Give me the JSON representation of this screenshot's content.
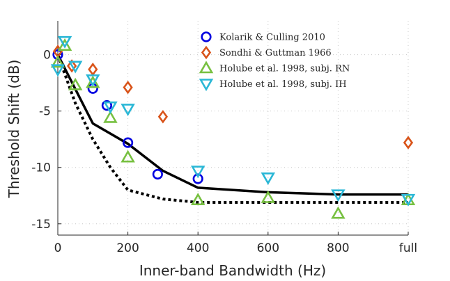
{
  "chart_data": {
    "type": "scatter",
    "xlabel": "Inner-band Bandwidth (Hz)",
    "ylabel": "Threshold Shift (dB)",
    "xlim": [
      0,
      1000
    ],
    "ylim": [
      -16,
      3
    ],
    "x_ticks": [
      {
        "value": 0,
        "label": "0"
      },
      {
        "value": 200,
        "label": "200"
      },
      {
        "value": 400,
        "label": "400"
      },
      {
        "value": 600,
        "label": "600"
      },
      {
        "value": 800,
        "label": "800"
      },
      {
        "value": 1000,
        "label": "full"
      }
    ],
    "y_ticks": [
      {
        "value": 0,
        "label": "0"
      },
      {
        "value": -5,
        "label": "-5"
      },
      {
        "value": -10,
        "label": "-10"
      },
      {
        "value": -15,
        "label": "-15"
      }
    ],
    "grid": true,
    "legend_position": "top-right",
    "series": [
      {
        "name": "Kolarik & Culling 2010",
        "marker": "circle",
        "color": "#0000e0",
        "x": [
          0,
          100,
          140,
          200,
          285,
          400
        ],
        "y": [
          0,
          -3,
          -4.5,
          -7.8,
          -10.6,
          -11.0
        ]
      },
      {
        "name": "Sondhi & Guttman 1966",
        "marker": "diamond",
        "color": "#d95319",
        "x": [
          0,
          40,
          100,
          200,
          300,
          1000
        ],
        "y": [
          0.3,
          -1.0,
          -1.3,
          -2.9,
          -5.5,
          -7.8
        ]
      },
      {
        "name": "Holube et al. 1998, subj. RN",
        "marker": "triangle-up",
        "color": "#77c040",
        "x": [
          0,
          20,
          50,
          100,
          150,
          200,
          400,
          600,
          800,
          1000
        ],
        "y": [
          -0.7,
          0.8,
          -2.7,
          -2.5,
          -5.6,
          -9.1,
          -12.9,
          -12.7,
          -14.1,
          -12.9
        ]
      },
      {
        "name": "Holube et al. 1998, subj. IH",
        "marker": "triangle-down",
        "color": "#2ab7d6",
        "x": [
          0,
          20,
          50,
          100,
          150,
          200,
          400,
          600,
          800,
          1000
        ],
        "y": [
          -1.3,
          1.2,
          -1.0,
          -2.2,
          -4.6,
          -4.8,
          -10.3,
          -10.9,
          -12.4,
          -12.8
        ]
      }
    ],
    "lines": [
      {
        "style": "solid",
        "color": "#000000",
        "x": [
          0,
          100,
          200,
          300,
          400,
          600,
          800,
          1000
        ],
        "y": [
          0,
          -6.1,
          -7.9,
          -10.3,
          -11.8,
          -12.2,
          -12.4,
          -12.4
        ]
      },
      {
        "style": "dotted",
        "color": "#000000",
        "x": [
          0,
          50,
          100,
          150,
          200,
          300,
          400,
          600,
          800,
          1000
        ],
        "y": [
          0,
          -4.3,
          -7.5,
          -10.0,
          -12.0,
          -12.8,
          -13.1,
          -13.1,
          -13.1,
          -13.1
        ]
      }
    ]
  }
}
